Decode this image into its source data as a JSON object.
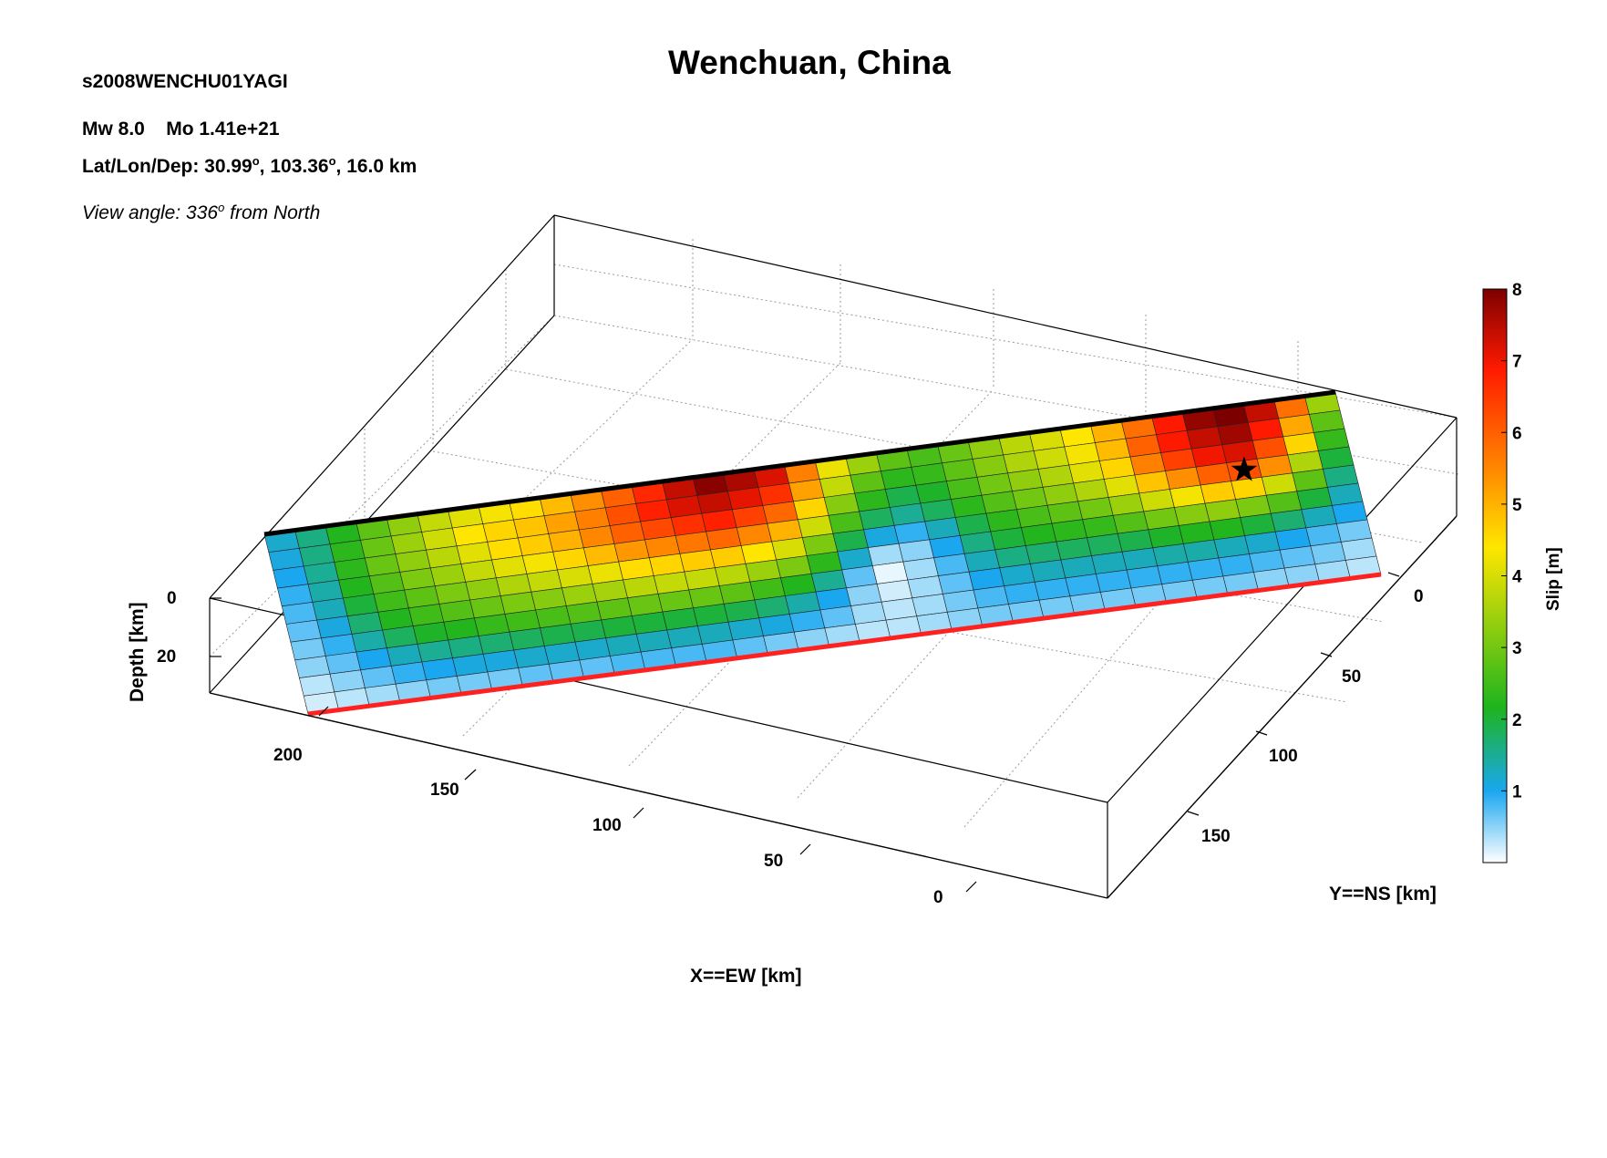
{
  "header": {
    "event_id": "s2008WENCHU01YAGI",
    "magnitude": "Mw 8.0",
    "moment": "Mo 1.41e+21",
    "location_label": "Lat/Lon/Dep: ",
    "lat": "30.99",
    "lon": "103.36",
    "depth": "16.0 km",
    "degree_mark": "o",
    "view_angle_label": "View angle: 336",
    "view_angle_suffix": " from North"
  },
  "chart_data": {
    "type": "heatmap",
    "title": "Wenchuan, China",
    "xlabel": "X==EW [km]",
    "ylabel": "Y==NS [km]",
    "zlabel": "Depth [km]",
    "colorbar_label": "Slip [m]",
    "x_ticks": [
      200,
      150,
      100,
      50,
      0
    ],
    "y_ticks": [
      0,
      50,
      100,
      150
    ],
    "z_ticks": [
      0,
      20
    ],
    "colorbar_ticks": [
      1,
      2,
      3,
      4,
      5,
      6,
      7,
      8
    ],
    "colorbar_range": [
      0,
      8
    ],
    "grid": true,
    "hypocenter_marker": "star",
    "fault_top_edge_color": "#000000",
    "fault_bottom_edge_color": "#ff2020",
    "colormap": [
      "#ffffff",
      "#1aa7f0",
      "#1eb41e",
      "#ffe600",
      "#ff8c00",
      "#ff1a00",
      "#7d0000"
    ],
    "slip_grid": [
      [
        1.2,
        1.6,
        2.2,
        2.8,
        3.3,
        3.8,
        4.1,
        4.3,
        4.5,
        4.9,
        5.4,
        6.0,
        6.7,
        7.4,
        7.9,
        7.6,
        7.2,
        5.6,
        4.2,
        3.4,
        2.8,
        2.6,
        2.9,
        3.3,
        3.7,
        4.0,
        4.4,
        5.0,
        5.8,
        6.9,
        7.8,
        8.0,
        7.4,
        5.8,
        3.4
      ],
      [
        1.1,
        1.6,
        2.3,
        2.9,
        3.4,
        3.9,
        4.4,
        4.6,
        4.8,
        5.2,
        5.6,
        6.2,
        6.8,
        7.2,
        7.4,
        7.1,
        6.6,
        5.2,
        3.8,
        2.8,
        2.3,
        2.4,
        2.8,
        3.2,
        3.6,
        3.9,
        4.3,
        4.9,
        6.0,
        6.9,
        7.4,
        7.7,
        6.9,
        5.1,
        2.8
      ],
      [
        1.0,
        1.5,
        2.3,
        2.9,
        3.3,
        3.7,
        4.1,
        4.5,
        4.7,
        5.0,
        5.5,
        6.0,
        6.3,
        6.6,
        6.8,
        6.4,
        5.9,
        4.6,
        3.2,
        2.3,
        1.9,
        2.1,
        2.6,
        3.0,
        3.3,
        3.6,
        4.1,
        4.6,
        5.6,
        6.4,
        7.0,
        7.2,
        6.2,
        4.6,
        2.4
      ],
      [
        0.9,
        1.4,
        2.2,
        2.7,
        3.1,
        3.4,
        3.8,
        4.1,
        4.3,
        4.6,
        4.9,
        5.3,
        5.5,
        5.7,
        5.9,
        5.5,
        5.0,
        3.9,
        2.6,
        1.8,
        1.5,
        1.8,
        2.3,
        2.7,
        3.0,
        3.3,
        3.6,
        4.1,
        4.8,
        5.4,
        6.0,
        6.2,
        5.4,
        3.6,
        2.0
      ],
      [
        0.8,
        1.3,
        2.0,
        2.5,
        2.8,
        3.1,
        3.3,
        3.6,
        3.8,
        4.0,
        4.2,
        4.5,
        4.6,
        4.7,
        4.7,
        4.4,
        4.0,
        3.1,
        1.9,
        1.1,
        0.9,
        1.3,
        1.9,
        2.3,
        2.6,
        2.8,
        3.0,
        3.4,
        3.9,
        4.3,
        4.7,
        4.6,
        3.9,
        2.8,
        1.6
      ],
      [
        0.7,
        1.1,
        1.7,
        2.2,
        2.5,
        2.7,
        2.9,
        3.1,
        3.2,
        3.4,
        3.5,
        3.7,
        3.8,
        3.8,
        3.7,
        3.4,
        3.1,
        2.3,
        1.2,
        0.4,
        0.5,
        1.0,
        1.6,
        2.0,
        2.2,
        2.3,
        2.4,
        2.7,
        3.0,
        3.2,
        3.3,
        3.1,
        2.7,
        2.0,
        1.3
      ],
      [
        0.6,
        0.9,
        1.4,
        1.8,
        2.1,
        2.2,
        2.4,
        2.5,
        2.6,
        2.7,
        2.8,
        2.9,
        2.9,
        2.9,
        2.8,
        2.5,
        2.2,
        1.5,
        0.7,
        0.1,
        0.4,
        0.8,
        1.3,
        1.6,
        1.7,
        1.8,
        1.8,
        1.9,
        2.1,
        2.2,
        2.2,
        2.0,
        1.7,
        1.3,
        1.0
      ],
      [
        0.5,
        0.7,
        1.0,
        1.3,
        1.5,
        1.6,
        1.7,
        1.8,
        1.9,
        1.9,
        2.0,
        2.0,
        2.0,
        2.0,
        1.9,
        1.7,
        1.4,
        1.0,
        0.5,
        0.2,
        0.4,
        0.7,
        1.0,
        1.2,
        1.3,
        1.3,
        1.3,
        1.3,
        1.4,
        1.4,
        1.3,
        1.2,
        1.0,
        0.8,
        0.6
      ],
      [
        0.3,
        0.5,
        0.7,
        0.9,
        1.0,
        1.1,
        1.1,
        1.2,
        1.2,
        1.2,
        1.3,
        1.3,
        1.3,
        1.3,
        1.2,
        1.1,
        0.9,
        0.7,
        0.4,
        0.3,
        0.4,
        0.6,
        0.8,
        0.9,
        0.9,
        0.9,
        0.9,
        0.9,
        0.9,
        0.9,
        0.9,
        0.8,
        0.7,
        0.6,
        0.4
      ],
      [
        0.2,
        0.3,
        0.4,
        0.5,
        0.6,
        0.6,
        0.6,
        0.7,
        0.7,
        0.7,
        0.8,
        0.8,
        0.8,
        0.8,
        0.7,
        0.6,
        0.5,
        0.4,
        0.3,
        0.3,
        0.4,
        0.5,
        0.6,
        0.6,
        0.6,
        0.6,
        0.6,
        0.6,
        0.6,
        0.6,
        0.6,
        0.5,
        0.5,
        0.4,
        0.3
      ]
    ],
    "hypocenter_cell": [
      31,
      3
    ]
  }
}
